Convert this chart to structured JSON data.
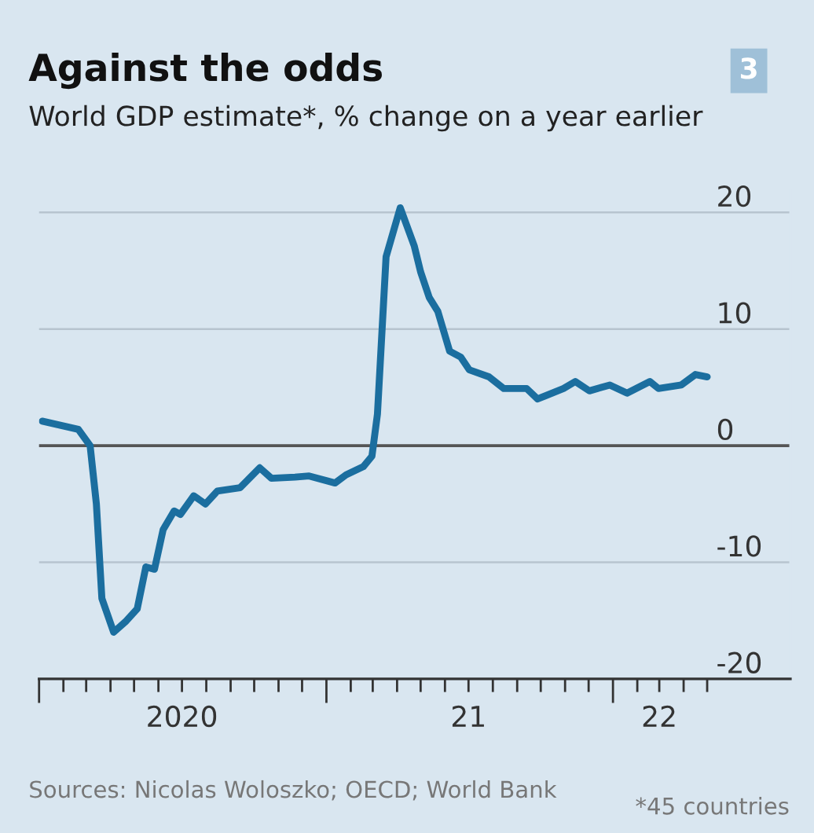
{
  "chart_data": {
    "type": "line",
    "title": "Against the odds",
    "subtitle": "World GDP estimate*, % change on a year earlier",
    "annotations": [
      "3",
      "Sources: Nicolas Woloszko; OECD; World Bank",
      "*45 countries"
    ],
    "series": [
      {
        "color": "#1b6e9f",
        "x": [
          "2020-01-05",
          "2020-02-20",
          "2020-03-06",
          "2020-03-14",
          "2020-03-21",
          "2020-04-05",
          "2020-04-20",
          "2020-05-05",
          "2020-05-16",
          "2020-05-27",
          "2020-06-07",
          "2020-06-21",
          "2020-06-29",
          "2020-07-16",
          "2020-07-31",
          "2020-08-15",
          "2020-09-13",
          "2020-10-08",
          "2020-10-23",
          "2020-11-22",
          "2020-12-10",
          "2021-01-12",
          "2021-01-26",
          "2021-02-17",
          "2021-02-28",
          "2021-03-07",
          "2021-03-18",
          "2021-04-05",
          "2021-04-23",
          "2021-05-01",
          "2021-05-12",
          "2021-05-23",
          "2021-06-07",
          "2021-06-21",
          "2021-07-02",
          "2021-07-27",
          "2021-08-15",
          "2021-09-13",
          "2021-09-27",
          "2021-10-30",
          "2021-11-14",
          "2021-12-02",
          "2021-12-28",
          "2022-01-19",
          "2022-02-17",
          "2022-02-28",
          "2022-03-29",
          "2022-04-16",
          "2022-05-01"
        ],
        "values": [
          2.1,
          1.4,
          0,
          -5,
          -13.1,
          -16,
          -15.1,
          -14,
          -10.4,
          -10.6,
          -7.2,
          -5.6,
          -5.9,
          -4.3,
          -5,
          -3.9,
          -3.6,
          -1.9,
          -2.8,
          -2.7,
          -2.6,
          -3.2,
          -2.5,
          -1.8,
          -0.9,
          2.7,
          16.2,
          20.4,
          17.1,
          14.9,
          12.7,
          11.5,
          8.1,
          7.6,
          6.5,
          5.9,
          4.9,
          4.9,
          4,
          4.9,
          5.5,
          4.7,
          5.2,
          4.5,
          5.5,
          4.9,
          5.2,
          6.1,
          5.9
        ]
      }
    ],
    "xlim": [
      "2020-01-01",
      "2022-08-15"
    ],
    "xticks": [
      {
        "value": "2020-01-01",
        "label": null
      },
      {
        "value": "2020-02-01",
        "label": null
      },
      {
        "value": "2020-03-01",
        "label": null
      },
      {
        "value": "2020-04-01",
        "label": null
      },
      {
        "value": "2020-05-01",
        "label": null
      },
      {
        "value": "2020-06-01",
        "label": null
      },
      {
        "value": "2020-07-01",
        "label": "2020"
      },
      {
        "value": "2020-08-01",
        "label": null
      },
      {
        "value": "2020-09-01",
        "label": null
      },
      {
        "value": "2020-10-01",
        "label": null
      },
      {
        "value": "2020-11-01",
        "label": null
      },
      {
        "value": "2020-12-01",
        "label": null
      },
      {
        "value": "2021-01-01",
        "label": null
      },
      {
        "value": "2021-02-01",
        "label": null
      },
      {
        "value": "2021-03-01",
        "label": null
      },
      {
        "value": "2021-04-01",
        "label": null
      },
      {
        "value": "2021-05-01",
        "label": null
      },
      {
        "value": "2021-06-01",
        "label": null
      },
      {
        "value": "2021-07-01",
        "label": "21"
      },
      {
        "value": "2021-08-01",
        "label": null
      },
      {
        "value": "2021-09-01",
        "label": null
      },
      {
        "value": "2021-10-01",
        "label": null
      },
      {
        "value": "2021-11-01",
        "label": null
      },
      {
        "value": "2021-12-01",
        "label": null
      },
      {
        "value": "2022-01-01",
        "label": null
      },
      {
        "value": "2022-02-01",
        "label": null
      },
      {
        "value": "2022-03-01",
        "label": "22"
      },
      {
        "value": "2022-04-01",
        "label": null
      },
      {
        "value": "2022-05-01",
        "label": null
      }
    ],
    "ylim": [
      -20,
      22
    ],
    "yticks": [
      -20,
      -10,
      0,
      10,
      20
    ],
    "ref_lines": [
      {
        "axis": "y",
        "value": 0,
        "color": "#555555"
      }
    ],
    "grid": "y",
    "marker": "none",
    "line_style": "solid"
  }
}
